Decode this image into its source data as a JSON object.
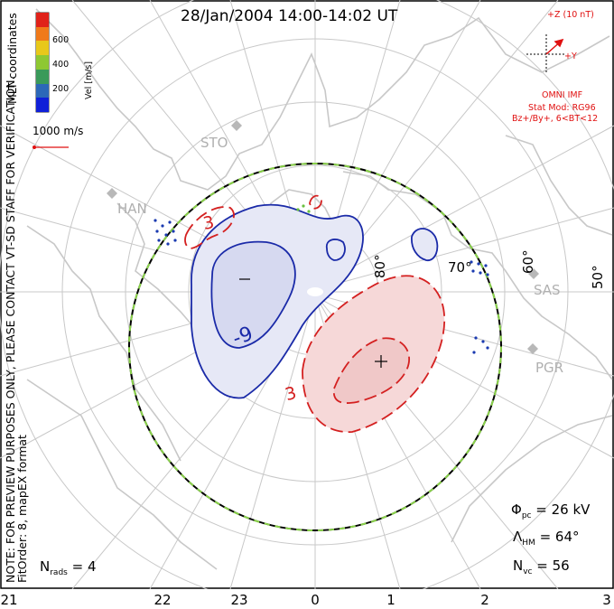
{
  "title": "28/Jan/2004 14:00-14:02 UT",
  "side_notes": {
    "note": "NOTE: FOR PREVIEW PURPOSES ONLY, PLEASE CONTACT VT-SD STAFF FOR VERIFICATION.",
    "fit": "FitOrder: 8, mapEX format",
    "coords": "MLT coordinates"
  },
  "colorbar": {
    "label": "Vel [m/s]",
    "ticks": [
      "600",
      "400",
      "200"
    ],
    "colors": [
      "#e0221a",
      "#f07a1a",
      "#e8c81a",
      "#8ec832",
      "#3a9a5a",
      "#2c68b8",
      "#1020d8"
    ]
  },
  "reference_vector": "1000 m/s",
  "imf": {
    "z_label": "+Z (10 nT)",
    "y_label": "+Y",
    "model_lines": [
      "OMNI IMF",
      "Stat Mod: RG96",
      "Bz+/By+, 6<BT<12"
    ]
  },
  "stations": [
    "STO",
    "HAN",
    "SAS",
    "PGR"
  ],
  "latitude_labels": [
    "80°",
    "70°",
    "60°",
    "50°"
  ],
  "mlt_labels": [
    "21",
    "22",
    "23",
    "0",
    "1",
    "2",
    "3"
  ],
  "contour_labels": [
    "3",
    "-9",
    "3",
    "-",
    "+"
  ],
  "stats": {
    "phi_sym": "Φ",
    "phi_sub": "pc",
    "phi_val": "= 26 kV",
    "lam_sym": "Λ",
    "lam_sub": "HM",
    "lam_val": "= 64°",
    "nvc_sym": "N",
    "nvc_sub": "vc",
    "nvc_val": "= 56",
    "nrads_sym": "N",
    "nrads_sub": "rads",
    "nrads_val": "= 4"
  },
  "colors": {
    "positive_cell": "#d42020",
    "negative_cell": "#1a2aa8",
    "land": "#c8c8c8",
    "grid": "#c8c8c8",
    "boundary_dash": "#8ad24a"
  }
}
